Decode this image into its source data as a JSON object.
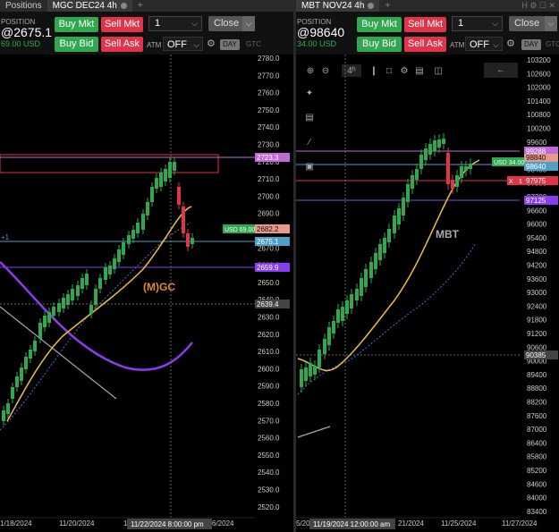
{
  "left": {
    "tabs": [
      {
        "label": "Positions",
        "active": false
      },
      {
        "label": "MGC DEC24 4h",
        "active": true
      }
    ],
    "position_label": "POSITION",
    "position_price": "@2675.1",
    "position_usd": "69.00 USD",
    "buy_mkt": "Buy Mkt",
    "sell_mkt": "Sell Mkt",
    "buy_bid": "Buy Bid",
    "sell_ask": "Sell Ask",
    "qty": "1",
    "close": "Close",
    "atm": "ATM",
    "off": "OFF",
    "day": "DAY",
    "gtc": "GTC",
    "instrument_label": "(M)GC",
    "position_count": "+1",
    "crosshair_time": "11/22/2024 8:00:00 pm",
    "x_labels": [
      "1/18/2024",
      "11/20/2024",
      "1",
      "6/2024"
    ],
    "y_ticks": [
      "2780.0",
      "2770.0",
      "2760.0",
      "2750.0",
      "2740.0",
      "2730.0",
      "2720.0",
      "2710.0",
      "2700.0",
      "2690.0",
      "2680.0",
      "2670.0",
      "2660.0",
      "2650.0",
      "2640.0",
      "2630.0",
      "2620.0",
      "2610.0",
      "2600.0",
      "2590.0",
      "2580.0",
      "2570.0",
      "2560.0",
      "2550.0",
      "2540.0",
      "2530.0",
      "2520.0"
    ],
    "price_flags": {
      "top": "2723.3",
      "usd": "USD 69.00",
      "current": "2682.2",
      "entry": "2675.1",
      "purple": "2659.9",
      "crosshair": "2639.4"
    }
  },
  "right": {
    "tabs": [
      {
        "label": "MBT NOV24 4h",
        "active": true
      }
    ],
    "position_label": "POSITION",
    "position_price": "@98640",
    "position_usd": "34.00 USD",
    "buy_mkt": "Buy Mkt",
    "sell_mkt": "Sell Mkt",
    "buy_bid": "Buy Bid",
    "sell_ask": "Sell Ask",
    "qty": "1",
    "close": "Close",
    "atm": "ATM",
    "off": "OFF",
    "day": "DAY",
    "gtc": "GTC",
    "instrument_label": "MBT",
    "crosshair_time": "11/19/2024 12:00:00 am",
    "x_labels": [
      "5/20",
      "21/2024",
      "11/25/2024",
      "11/27/2024"
    ],
    "y_ticks": [
      "103200",
      "102600",
      "102000",
      "101400",
      "100800",
      "100200",
      "99600",
      "99000",
      "98400",
      "97800",
      "97200",
      "96600",
      "96000",
      "95400",
      "94800",
      "94200",
      "93600",
      "93000",
      "92400",
      "91800",
      "91200",
      "90600",
      "90000",
      "89400",
      "88800",
      "88200",
      "87600",
      "87000",
      "86400",
      "85800",
      "85200",
      "84600",
      "84000",
      "83400"
    ],
    "price_flags": {
      "top": "99288",
      "mid": "98840",
      "usd": "USD 34.00",
      "entry": "98640",
      "red": "97975",
      "red_x": "X",
      "red_qty": "1",
      "purple": "97125",
      "crosshair": "90385"
    }
  },
  "colors": {
    "bull": "#2fa84f",
    "bear": "#e0344a",
    "ma_yellow": "#e8c13a",
    "ma_purple": "#8a3cf0",
    "label_orange": "#e08a2a",
    "label_gray": "#aaaaaa"
  }
}
